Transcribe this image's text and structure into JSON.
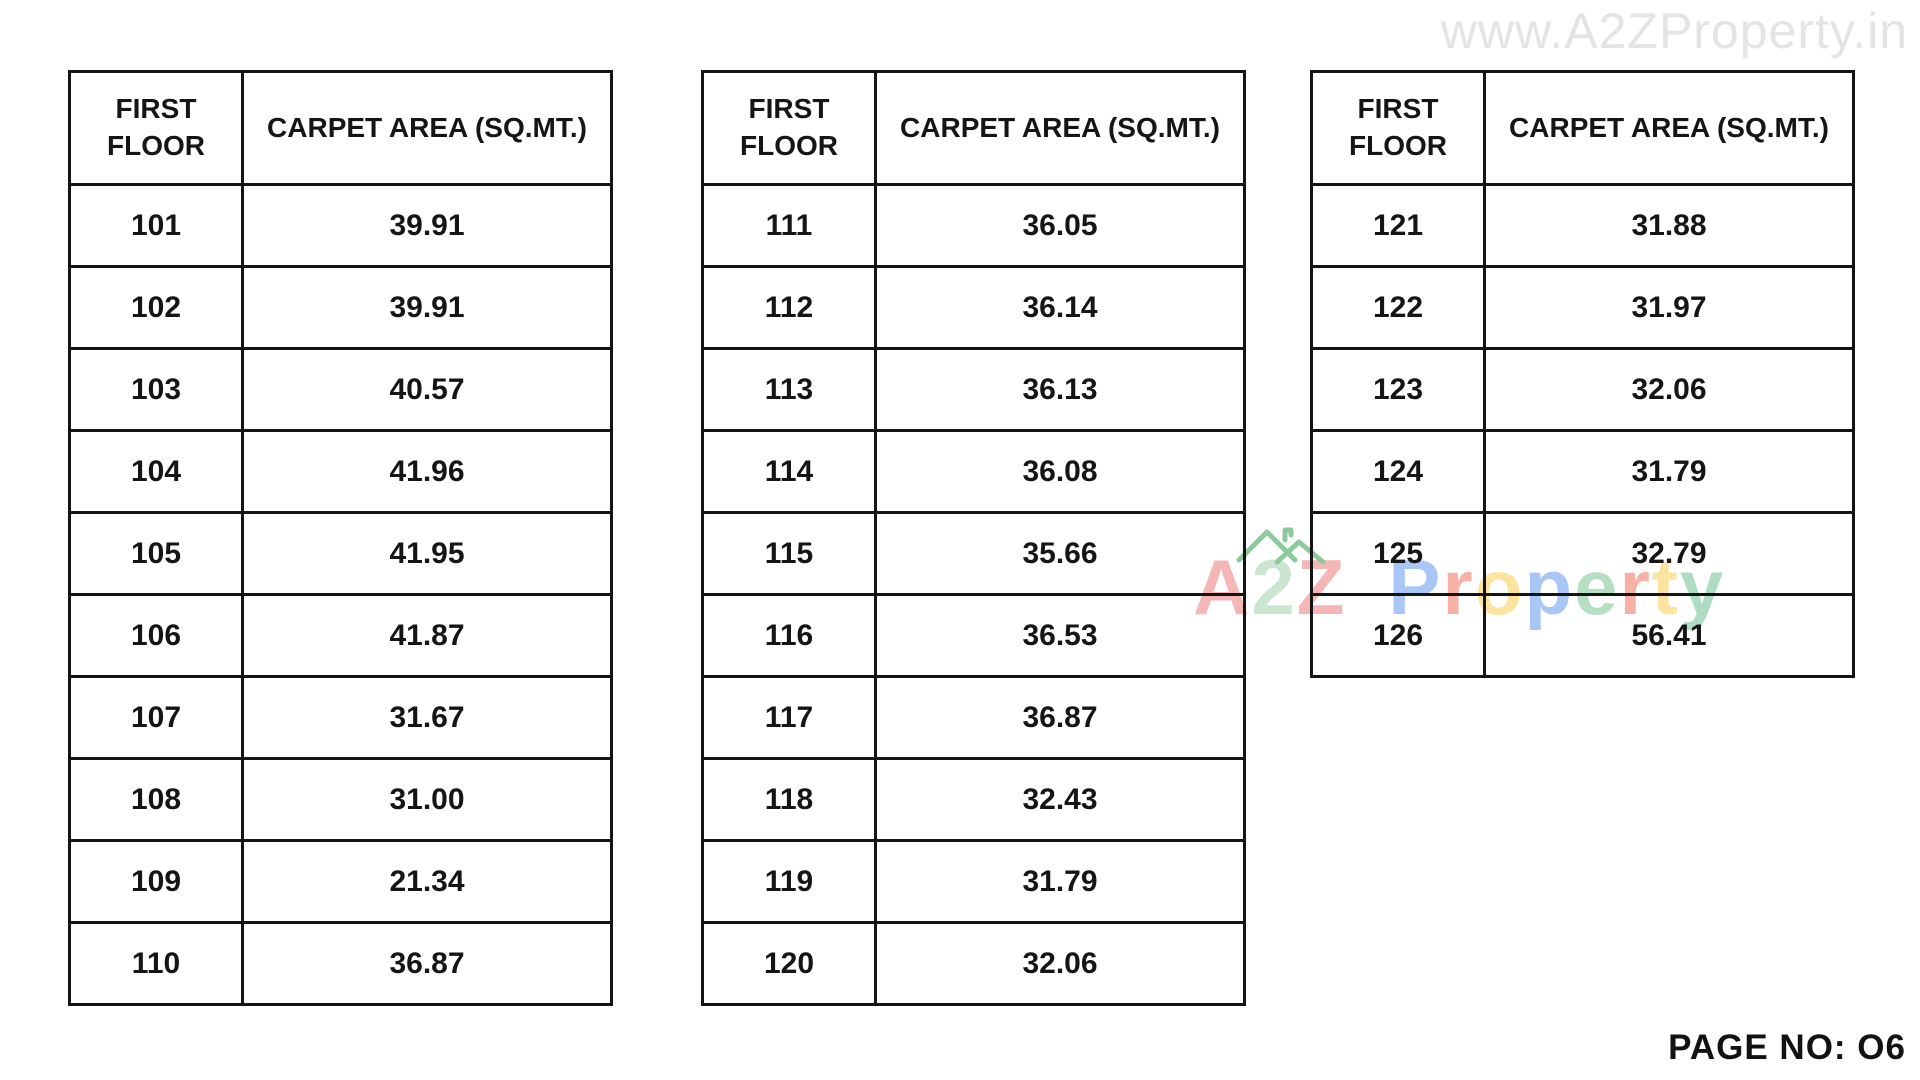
{
  "page": {
    "watermark_url": "www.A2ZProperty.in",
    "page_number_label": "PAGE NO: O6"
  },
  "watermark_logo": {
    "text": "A2Z Property",
    "house_icon_color": "#8cc99b",
    "letters": [
      {
        "ch": "A",
        "color": "#f5b6b6"
      },
      {
        "ch": "2",
        "color": "#cbe6d0",
        "house": true
      },
      {
        "ch": "Z",
        "color": "#f5b6b6"
      },
      {
        "ch": " ",
        "color": "#ffffff"
      },
      {
        "ch": "P",
        "color": "#a8c7f7"
      },
      {
        "ch": "r",
        "color": "#f6b0a6"
      },
      {
        "ch": "o",
        "color": "#fce49e"
      },
      {
        "ch": "p",
        "color": "#a8c7f7"
      },
      {
        "ch": "e",
        "color": "#b5dfc1"
      },
      {
        "ch": "r",
        "color": "#f6b0a6"
      },
      {
        "ch": "t",
        "color": "#fce49e"
      },
      {
        "ch": "y",
        "color": "#aedcc2"
      }
    ]
  },
  "tables": [
    {
      "headers": [
        "FIRST FLOOR",
        "CARPET AREA (SQ.MT.)"
      ],
      "rows": [
        [
          "101",
          "39.91"
        ],
        [
          "102",
          "39.91"
        ],
        [
          "103",
          "40.57"
        ],
        [
          "104",
          "41.96"
        ],
        [
          "105",
          "41.95"
        ],
        [
          "106",
          "41.87"
        ],
        [
          "107",
          "31.67"
        ],
        [
          "108",
          "31.00"
        ],
        [
          "109",
          "21.34"
        ],
        [
          "110",
          "36.87"
        ]
      ]
    },
    {
      "headers": [
        "FIRST FLOOR",
        "CARPET AREA (SQ.MT.)"
      ],
      "rows": [
        [
          "111",
          "36.05"
        ],
        [
          "112",
          "36.14"
        ],
        [
          "113",
          "36.13"
        ],
        [
          "114",
          "36.08"
        ],
        [
          "115",
          "35.66"
        ],
        [
          "116",
          "36.53"
        ],
        [
          "117",
          "36.87"
        ],
        [
          "118",
          "32.43"
        ],
        [
          "119",
          "31.79"
        ],
        [
          "120",
          "32.06"
        ]
      ]
    },
    {
      "headers": [
        "FIRST FLOOR",
        "CARPET AREA (SQ.MT.)"
      ],
      "rows": [
        [
          "121",
          "31.88"
        ],
        [
          "122",
          "31.97"
        ],
        [
          "123",
          "32.06"
        ],
        [
          "124",
          "31.79"
        ],
        [
          "125",
          "32.79"
        ],
        [
          "126",
          "56.41"
        ]
      ]
    }
  ]
}
